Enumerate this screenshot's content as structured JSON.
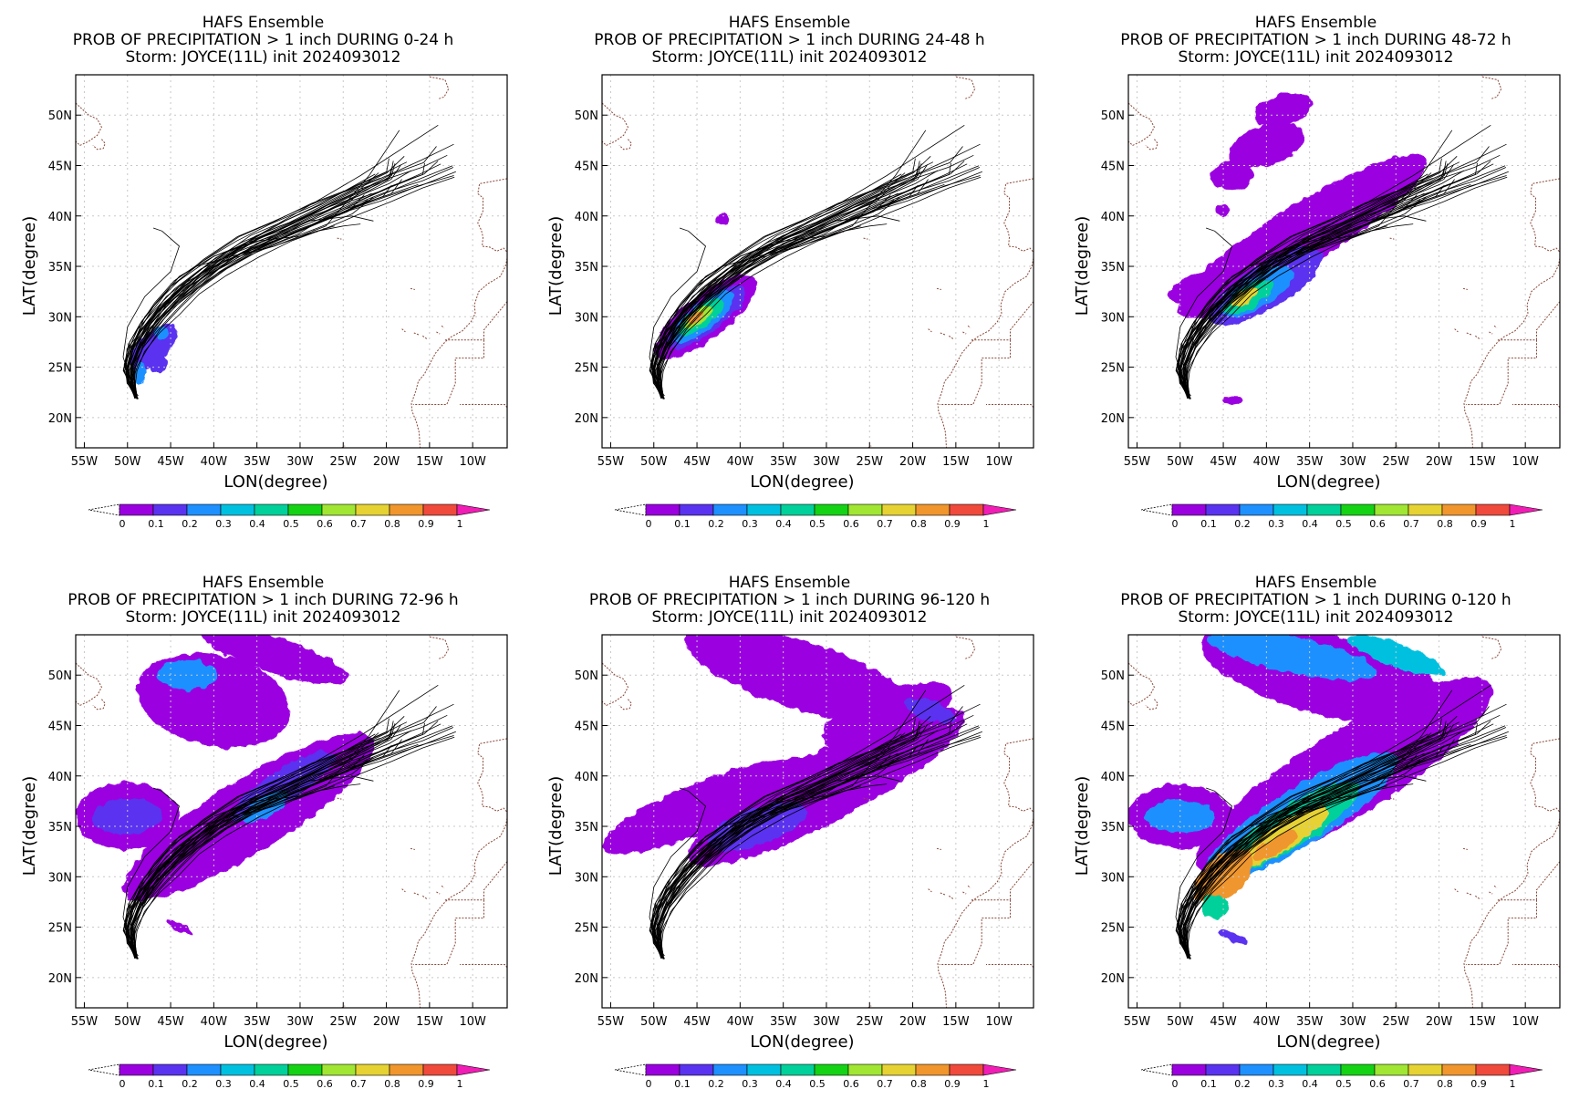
{
  "panels": [
    {
      "title": "HAFS Ensemble",
      "subtitle": "PROB OF PRECIPITATION > 1 inch DURING  0-24 h",
      "storm": "Storm: JOYCE(11L) init 2024093012"
    },
    {
      "title": "HAFS Ensemble",
      "subtitle": "PROB OF PRECIPITATION > 1 inch DURING 24-48 h",
      "storm": "Storm: JOYCE(11L) init 2024093012"
    },
    {
      "title": "HAFS Ensemble",
      "subtitle": "PROB OF PRECIPITATION > 1 inch DURING 48-72 h",
      "storm": "Storm: JOYCE(11L) init 2024093012"
    },
    {
      "title": "HAFS Ensemble",
      "subtitle": "PROB OF PRECIPITATION > 1 inch DURING 72-96 h",
      "storm": "Storm: JOYCE(11L) init 2024093012"
    },
    {
      "title": "HAFS Ensemble",
      "subtitle": "PROB OF PRECIPITATION > 1 inch DURING 96-120 h",
      "storm": "Storm: JOYCE(11L) init 2024093012"
    },
    {
      "title": "HAFS Ensemble",
      "subtitle": "PROB OF PRECIPITATION > 1 inch DURING 0-120 h",
      "storm": "Storm: JOYCE(11L) init 2024093012"
    }
  ],
  "axes": {
    "xlabel": "LON(degree)",
    "ylabel": "LAT(degree)",
    "x_ticks": [
      "55W",
      "50W",
      "45W",
      "40W",
      "35W",
      "30W",
      "25W",
      "20W",
      "15W",
      "10W"
    ],
    "y_ticks": [
      "20N",
      "25N",
      "30N",
      "35N",
      "40N",
      "45N",
      "50N"
    ]
  },
  "colorbar": {
    "labels": [
      "0",
      "0.1",
      "0.2",
      "0.3",
      "0.4",
      "0.5",
      "0.6",
      "0.7",
      "0.8",
      "0.9",
      "1"
    ],
    "colors": [
      "#9b00e0",
      "#5a33f0",
      "#1e90ff",
      "#00c0e0",
      "#00d09a",
      "#14d214",
      "#a0e632",
      "#e6d232",
      "#f0962d",
      "#f04a3c"
    ],
    "over_color": "#f01eb4"
  },
  "chart_data": [
    {
      "type": "heatmap",
      "period": "0-24 h",
      "lon_range": [
        -56,
        -6
      ],
      "lat_range": [
        17,
        54
      ],
      "tracks": "black ensemble track lines from ~49W,22N curving NE to ~11W,46N"
    },
    {
      "type": "heatmap",
      "period": "24-48 h",
      "lon_range": [
        -56,
        -6
      ],
      "lat_range": [
        17,
        54
      ]
    },
    {
      "type": "heatmap",
      "period": "48-72 h",
      "lon_range": [
        -56,
        -6
      ],
      "lat_range": [
        17,
        54
      ]
    },
    {
      "type": "heatmap",
      "period": "72-96 h",
      "lon_range": [
        -56,
        -6
      ],
      "lat_range": [
        17,
        54
      ]
    },
    {
      "type": "heatmap",
      "period": "96-120 h",
      "lon_range": [
        -56,
        -6
      ],
      "lat_range": [
        17,
        54
      ]
    },
    {
      "type": "heatmap",
      "period": "0-120 h",
      "lon_range": [
        -56,
        -6
      ],
      "lat_range": [
        17,
        54
      ]
    }
  ]
}
